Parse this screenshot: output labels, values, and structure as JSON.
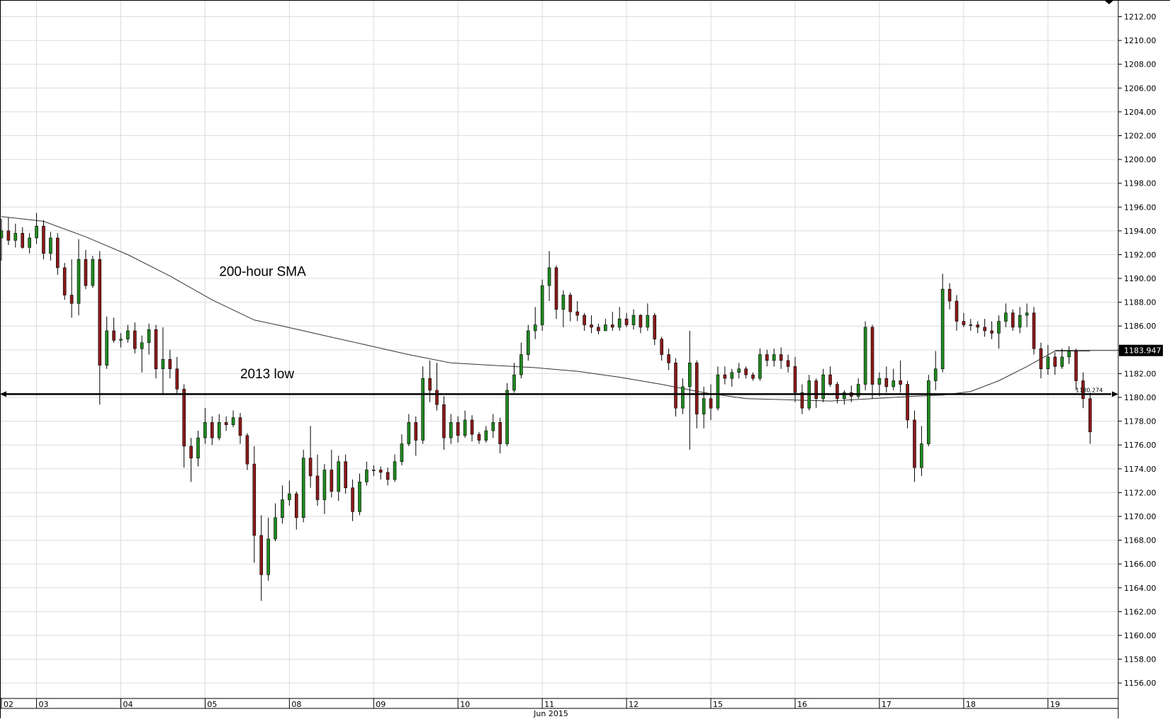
{
  "chart_data": {
    "type": "candlestick",
    "month_label": "Jun 2015",
    "y_axis": {
      "min": 1154.7,
      "max": 1213.4,
      "ticks": [
        1156,
        1158,
        1160,
        1162,
        1164,
        1166,
        1168,
        1170,
        1172,
        1174,
        1176,
        1178,
        1180,
        1182,
        1184,
        1186,
        1188,
        1190,
        1192,
        1194,
        1196,
        1198,
        1200,
        1202,
        1204,
        1206,
        1208,
        1210,
        1212
      ],
      "position": "right"
    },
    "x_axis": {
      "range": [
        0,
        158
      ],
      "days": [
        {
          "label": "02",
          "x": 0
        },
        {
          "label": "03",
          "x": 5
        },
        {
          "label": "04",
          "x": 17
        },
        {
          "label": "05",
          "x": 29
        },
        {
          "label": "08",
          "x": 41
        },
        {
          "label": "09",
          "x": 53
        },
        {
          "label": "10",
          "x": 65
        },
        {
          "label": "11",
          "x": 77
        },
        {
          "label": "12",
          "x": 89
        },
        {
          "label": "15",
          "x": 101
        },
        {
          "label": "16",
          "x": 113
        },
        {
          "label": "17",
          "x": 125
        },
        {
          "label": "18",
          "x": 137
        },
        {
          "label": "19",
          "x": 149
        }
      ]
    },
    "grid": true,
    "colors": {
      "up": "#1f8a1f",
      "down": "#8b1a1a",
      "wick": "#000000",
      "sma": "#333333",
      "level": "#000000"
    },
    "annotations": [
      {
        "text": "200-hour SMA",
        "x": 31,
        "y": 1190.2
      },
      {
        "text": "2013 low",
        "x": 34,
        "y": 1181.6
      }
    ],
    "level_line": {
      "value": 1180.274,
      "label": "1180.274"
    },
    "last_value": {
      "value": 1183.947,
      "label": "1183.947"
    },
    "sma": [
      [
        0,
        1195.2
      ],
      [
        6,
        1194.8
      ],
      [
        12,
        1193.5
      ],
      [
        18,
        1192.0
      ],
      [
        24,
        1190.2
      ],
      [
        30,
        1188.2
      ],
      [
        36,
        1186.5
      ],
      [
        40,
        1186.0
      ],
      [
        46,
        1185.2
      ],
      [
        52,
        1184.4
      ],
      [
        58,
        1183.6
      ],
      [
        64,
        1182.9
      ],
      [
        70,
        1182.7
      ],
      [
        76,
        1182.5
      ],
      [
        82,
        1182.2
      ],
      [
        88,
        1181.7
      ],
      [
        94,
        1181.1
      ],
      [
        100,
        1180.4
      ],
      [
        106,
        1179.9
      ],
      [
        112,
        1179.8
      ],
      [
        118,
        1179.7
      ],
      [
        124,
        1179.9
      ],
      [
        130,
        1180.1
      ],
      [
        134,
        1180.2
      ],
      [
        138,
        1180.5
      ],
      [
        142,
        1181.4
      ],
      [
        146,
        1182.6
      ],
      [
        150,
        1183.9
      ],
      [
        155,
        1183.9
      ]
    ],
    "candles": [
      {
        "o": 1193.4,
        "h": 1195.0,
        "l": 1191.5,
        "c": 1194.0
      },
      {
        "o": 1194.0,
        "h": 1195.1,
        "l": 1192.8,
        "c": 1193.2
      },
      {
        "o": 1193.2,
        "h": 1194.6,
        "l": 1192.6,
        "c": 1193.8
      },
      {
        "o": 1193.8,
        "h": 1194.3,
        "l": 1192.5,
        "c": 1192.6
      },
      {
        "o": 1192.6,
        "h": 1193.8,
        "l": 1192.1,
        "c": 1193.4
      },
      {
        "o": 1193.4,
        "h": 1195.5,
        "l": 1192.9,
        "c": 1194.4
      },
      {
        "o": 1194.4,
        "h": 1194.9,
        "l": 1191.6,
        "c": 1192.1
      },
      {
        "o": 1192.1,
        "h": 1193.9,
        "l": 1191.5,
        "c": 1193.4
      },
      {
        "o": 1193.4,
        "h": 1193.8,
        "l": 1190.3,
        "c": 1190.9
      },
      {
        "o": 1190.9,
        "h": 1191.3,
        "l": 1188.2,
        "c": 1188.6
      },
      {
        "o": 1188.6,
        "h": 1191.6,
        "l": 1186.7,
        "c": 1187.9
      },
      {
        "o": 1187.9,
        "h": 1193.3,
        "l": 1186.9,
        "c": 1191.6
      },
      {
        "o": 1191.6,
        "h": 1192.4,
        "l": 1189.1,
        "c": 1189.4
      },
      {
        "o": 1189.4,
        "h": 1191.9,
        "l": 1189.2,
        "c": 1191.6
      },
      {
        "o": 1191.6,
        "h": 1192.3,
        "l": 1179.4,
        "c": 1182.7
      },
      {
        "o": 1182.7,
        "h": 1186.8,
        "l": 1182.4,
        "c": 1185.6
      },
      {
        "o": 1185.6,
        "h": 1186.7,
        "l": 1184.6,
        "c": 1184.8
      },
      {
        "o": 1184.8,
        "h": 1185.4,
        "l": 1184.2,
        "c": 1184.9
      },
      {
        "o": 1184.9,
        "h": 1186.1,
        "l": 1184.6,
        "c": 1185.6
      },
      {
        "o": 1185.6,
        "h": 1186.3,
        "l": 1183.7,
        "c": 1184.1
      },
      {
        "o": 1184.1,
        "h": 1185.2,
        "l": 1182.1,
        "c": 1184.6
      },
      {
        "o": 1184.6,
        "h": 1186.2,
        "l": 1183.6,
        "c": 1185.7
      },
      {
        "o": 1185.7,
        "h": 1186.1,
        "l": 1181.6,
        "c": 1182.4
      },
      {
        "o": 1182.4,
        "h": 1185.9,
        "l": 1180.2,
        "c": 1183.2
      },
      {
        "o": 1183.2,
        "h": 1184.0,
        "l": 1181.6,
        "c": 1182.4
      },
      {
        "o": 1182.4,
        "h": 1183.4,
        "l": 1180.3,
        "c": 1180.7
      },
      {
        "o": 1180.7,
        "h": 1181.1,
        "l": 1174.1,
        "c": 1175.9
      },
      {
        "o": 1175.9,
        "h": 1176.6,
        "l": 1172.9,
        "c": 1174.9
      },
      {
        "o": 1174.9,
        "h": 1177.2,
        "l": 1174.2,
        "c": 1176.6
      },
      {
        "o": 1176.6,
        "h": 1179.1,
        "l": 1176.1,
        "c": 1177.9
      },
      {
        "o": 1177.9,
        "h": 1178.4,
        "l": 1176.0,
        "c": 1176.6
      },
      {
        "o": 1176.6,
        "h": 1178.6,
        "l": 1176.4,
        "c": 1177.9
      },
      {
        "o": 1177.9,
        "h": 1178.4,
        "l": 1177.2,
        "c": 1177.7
      },
      {
        "o": 1177.7,
        "h": 1178.9,
        "l": 1177.5,
        "c": 1178.3
      },
      {
        "o": 1178.3,
        "h": 1178.7,
        "l": 1176.1,
        "c": 1176.8
      },
      {
        "o": 1176.8,
        "h": 1177.0,
        "l": 1173.9,
        "c": 1174.4
      },
      {
        "o": 1174.4,
        "h": 1175.9,
        "l": 1166.1,
        "c": 1168.4
      },
      {
        "o": 1168.4,
        "h": 1170.1,
        "l": 1162.9,
        "c": 1165.1
      },
      {
        "o": 1165.1,
        "h": 1169.9,
        "l": 1164.6,
        "c": 1168.1
      },
      {
        "o": 1168.1,
        "h": 1171.1,
        "l": 1167.9,
        "c": 1169.9
      },
      {
        "o": 1169.9,
        "h": 1172.6,
        "l": 1169.4,
        "c": 1171.4
      },
      {
        "o": 1171.4,
        "h": 1173.0,
        "l": 1170.9,
        "c": 1171.9
      },
      {
        "o": 1171.9,
        "h": 1172.1,
        "l": 1168.9,
        "c": 1169.9
      },
      {
        "o": 1169.9,
        "h": 1175.6,
        "l": 1169.5,
        "c": 1174.9
      },
      {
        "o": 1174.9,
        "h": 1177.6,
        "l": 1172.4,
        "c": 1173.4
      },
      {
        "o": 1173.4,
        "h": 1175.2,
        "l": 1170.9,
        "c": 1171.4
      },
      {
        "o": 1171.4,
        "h": 1174.4,
        "l": 1170.2,
        "c": 1173.9
      },
      {
        "o": 1173.9,
        "h": 1175.6,
        "l": 1171.6,
        "c": 1172.1
      },
      {
        "o": 1172.1,
        "h": 1175.1,
        "l": 1171.3,
        "c": 1174.6
      },
      {
        "o": 1174.6,
        "h": 1175.2,
        "l": 1171.9,
        "c": 1172.4
      },
      {
        "o": 1172.4,
        "h": 1173.1,
        "l": 1169.6,
        "c": 1170.4
      },
      {
        "o": 1170.4,
        "h": 1173.6,
        "l": 1170.1,
        "c": 1172.9
      },
      {
        "o": 1172.9,
        "h": 1174.6,
        "l": 1172.6,
        "c": 1173.9
      },
      {
        "o": 1173.9,
        "h": 1174.3,
        "l": 1173.4,
        "c": 1173.9
      },
      {
        "o": 1173.9,
        "h": 1174.2,
        "l": 1173.1,
        "c": 1173.7
      },
      {
        "o": 1173.7,
        "h": 1174.1,
        "l": 1172.6,
        "c": 1173.1
      },
      {
        "o": 1173.1,
        "h": 1175.2,
        "l": 1172.9,
        "c": 1174.6
      },
      {
        "o": 1174.6,
        "h": 1176.9,
        "l": 1174.3,
        "c": 1176.1
      },
      {
        "o": 1176.1,
        "h": 1178.6,
        "l": 1175.9,
        "c": 1177.9
      },
      {
        "o": 1177.9,
        "h": 1178.4,
        "l": 1175.1,
        "c": 1176.4
      },
      {
        "o": 1176.4,
        "h": 1182.6,
        "l": 1176.1,
        "c": 1181.6
      },
      {
        "o": 1181.6,
        "h": 1183.1,
        "l": 1179.6,
        "c": 1180.6
      },
      {
        "o": 1180.6,
        "h": 1182.9,
        "l": 1178.9,
        "c": 1179.4
      },
      {
        "o": 1179.4,
        "h": 1180.1,
        "l": 1175.6,
        "c": 1176.6
      },
      {
        "o": 1176.6,
        "h": 1178.6,
        "l": 1176.1,
        "c": 1177.9
      },
      {
        "o": 1177.9,
        "h": 1178.4,
        "l": 1176.2,
        "c": 1176.8
      },
      {
        "o": 1176.8,
        "h": 1178.9,
        "l": 1176.6,
        "c": 1178.1
      },
      {
        "o": 1178.1,
        "h": 1178.5,
        "l": 1176.3,
        "c": 1176.9
      },
      {
        "o": 1176.9,
        "h": 1177.1,
        "l": 1176.1,
        "c": 1176.4
      },
      {
        "o": 1176.4,
        "h": 1177.6,
        "l": 1176.2,
        "c": 1177.2
      },
      {
        "o": 1177.2,
        "h": 1178.6,
        "l": 1176.6,
        "c": 1177.9
      },
      {
        "o": 1177.9,
        "h": 1178.3,
        "l": 1175.3,
        "c": 1176.1
      },
      {
        "o": 1176.1,
        "h": 1181.2,
        "l": 1175.9,
        "c": 1180.6
      },
      {
        "o": 1180.6,
        "h": 1182.9,
        "l": 1180.4,
        "c": 1181.9
      },
      {
        "o": 1181.9,
        "h": 1184.6,
        "l": 1181.6,
        "c": 1183.6
      },
      {
        "o": 1183.6,
        "h": 1186.1,
        "l": 1183.1,
        "c": 1185.6
      },
      {
        "o": 1185.6,
        "h": 1187.6,
        "l": 1184.9,
        "c": 1186.1
      },
      {
        "o": 1186.1,
        "h": 1189.9,
        "l": 1185.6,
        "c": 1189.4
      },
      {
        "o": 1189.4,
        "h": 1192.3,
        "l": 1188.1,
        "c": 1190.9
      },
      {
        "o": 1190.9,
        "h": 1191.1,
        "l": 1186.6,
        "c": 1187.4
      },
      {
        "o": 1187.4,
        "h": 1189.0,
        "l": 1185.9,
        "c": 1188.6
      },
      {
        "o": 1188.6,
        "h": 1188.8,
        "l": 1186.4,
        "c": 1187.2
      },
      {
        "o": 1187.2,
        "h": 1188.1,
        "l": 1186.4,
        "c": 1186.9
      },
      {
        "o": 1186.9,
        "h": 1187.1,
        "l": 1185.6,
        "c": 1186.1
      },
      {
        "o": 1186.1,
        "h": 1186.9,
        "l": 1185.4,
        "c": 1185.9
      },
      {
        "o": 1185.9,
        "h": 1186.2,
        "l": 1185.3,
        "c": 1185.6
      },
      {
        "o": 1185.6,
        "h": 1186.6,
        "l": 1185.6,
        "c": 1186.1
      },
      {
        "o": 1186.1,
        "h": 1187.2,
        "l": 1185.6,
        "c": 1185.9
      },
      {
        "o": 1185.9,
        "h": 1187.6,
        "l": 1185.6,
        "c": 1186.6
      },
      {
        "o": 1186.6,
        "h": 1187.1,
        "l": 1185.9,
        "c": 1186.1
      },
      {
        "o": 1186.1,
        "h": 1187.4,
        "l": 1185.7,
        "c": 1186.9
      },
      {
        "o": 1186.9,
        "h": 1187.0,
        "l": 1185.4,
        "c": 1185.9
      },
      {
        "o": 1185.9,
        "h": 1187.9,
        "l": 1185.6,
        "c": 1186.9
      },
      {
        "o": 1186.9,
        "h": 1187.1,
        "l": 1184.4,
        "c": 1184.9
      },
      {
        "o": 1184.9,
        "h": 1185.1,
        "l": 1183.1,
        "c": 1183.6
      },
      {
        "o": 1183.6,
        "h": 1184.1,
        "l": 1182.3,
        "c": 1182.9
      },
      {
        "o": 1182.9,
        "h": 1183.3,
        "l": 1178.4,
        "c": 1179.1
      },
      {
        "o": 1179.1,
        "h": 1181.6,
        "l": 1178.6,
        "c": 1180.9
      },
      {
        "o": 1180.9,
        "h": 1185.6,
        "l": 1175.6,
        "c": 1182.9
      },
      {
        "o": 1182.9,
        "h": 1183.1,
        "l": 1177.4,
        "c": 1178.6
      },
      {
        "o": 1178.6,
        "h": 1180.9,
        "l": 1177.4,
        "c": 1179.9
      },
      {
        "o": 1179.9,
        "h": 1181.1,
        "l": 1178.1,
        "c": 1179.1
      },
      {
        "o": 1179.1,
        "h": 1182.6,
        "l": 1178.9,
        "c": 1181.9
      },
      {
        "o": 1181.9,
        "h": 1182.6,
        "l": 1181.1,
        "c": 1181.6
      },
      {
        "o": 1181.6,
        "h": 1182.4,
        "l": 1180.9,
        "c": 1182.1
      },
      {
        "o": 1182.1,
        "h": 1182.9,
        "l": 1181.6,
        "c": 1182.4
      },
      {
        "o": 1182.4,
        "h": 1182.6,
        "l": 1181.6,
        "c": 1181.9
      },
      {
        "o": 1181.9,
        "h": 1182.1,
        "l": 1181.4,
        "c": 1181.6
      },
      {
        "o": 1181.6,
        "h": 1184.1,
        "l": 1181.4,
        "c": 1183.6
      },
      {
        "o": 1183.6,
        "h": 1184.0,
        "l": 1182.6,
        "c": 1183.1
      },
      {
        "o": 1183.1,
        "h": 1184.1,
        "l": 1182.6,
        "c": 1183.6
      },
      {
        "o": 1183.6,
        "h": 1184.2,
        "l": 1182.4,
        "c": 1183.1
      },
      {
        "o": 1183.1,
        "h": 1183.6,
        "l": 1182.1,
        "c": 1182.6
      },
      {
        "o": 1182.6,
        "h": 1183.4,
        "l": 1179.6,
        "c": 1180.4
      },
      {
        "o": 1180.4,
        "h": 1181.1,
        "l": 1178.6,
        "c": 1179.1
      },
      {
        "o": 1179.1,
        "h": 1181.9,
        "l": 1178.9,
        "c": 1181.4
      },
      {
        "o": 1181.4,
        "h": 1181.6,
        "l": 1179.1,
        "c": 1179.9
      },
      {
        "o": 1179.9,
        "h": 1182.4,
        "l": 1179.6,
        "c": 1181.9
      },
      {
        "o": 1181.9,
        "h": 1182.6,
        "l": 1180.9,
        "c": 1181.1
      },
      {
        "o": 1181.1,
        "h": 1181.3,
        "l": 1179.5,
        "c": 1179.9
      },
      {
        "o": 1179.9,
        "h": 1180.6,
        "l": 1179.4,
        "c": 1180.4
      },
      {
        "o": 1180.4,
        "h": 1181.0,
        "l": 1179.6,
        "c": 1180.1
      },
      {
        "o": 1180.1,
        "h": 1181.6,
        "l": 1179.9,
        "c": 1181.1
      },
      {
        "o": 1181.1,
        "h": 1186.4,
        "l": 1180.6,
        "c": 1185.9
      },
      {
        "o": 1185.9,
        "h": 1186.1,
        "l": 1179.9,
        "c": 1181.1
      },
      {
        "o": 1181.1,
        "h": 1182.1,
        "l": 1180.1,
        "c": 1181.6
      },
      {
        "o": 1181.6,
        "h": 1182.6,
        "l": 1180.4,
        "c": 1180.9
      },
      {
        "o": 1180.9,
        "h": 1182.4,
        "l": 1180.6,
        "c": 1181.4
      },
      {
        "o": 1181.4,
        "h": 1183.1,
        "l": 1180.4,
        "c": 1181.1
      },
      {
        "o": 1181.1,
        "h": 1181.4,
        "l": 1177.4,
        "c": 1178.1
      },
      {
        "o": 1178.1,
        "h": 1178.9,
        "l": 1172.9,
        "c": 1174.1
      },
      {
        "o": 1174.1,
        "h": 1177.6,
        "l": 1173.4,
        "c": 1176.1
      },
      {
        "o": 1176.1,
        "h": 1181.9,
        "l": 1175.9,
        "c": 1181.4
      },
      {
        "o": 1181.4,
        "h": 1183.9,
        "l": 1180.6,
        "c": 1182.4
      },
      {
        "o": 1182.4,
        "h": 1190.4,
        "l": 1182.1,
        "c": 1189.1
      },
      {
        "o": 1189.1,
        "h": 1189.6,
        "l": 1187.4,
        "c": 1188.1
      },
      {
        "o": 1188.1,
        "h": 1188.6,
        "l": 1185.6,
        "c": 1186.4
      },
      {
        "o": 1186.4,
        "h": 1187.1,
        "l": 1185.9,
        "c": 1186.1
      },
      {
        "o": 1186.1,
        "h": 1186.6,
        "l": 1185.6,
        "c": 1186.1
      },
      {
        "o": 1186.1,
        "h": 1186.4,
        "l": 1185.4,
        "c": 1185.9
      },
      {
        "o": 1185.9,
        "h": 1186.6,
        "l": 1185.1,
        "c": 1185.6
      },
      {
        "o": 1185.6,
        "h": 1186.4,
        "l": 1184.9,
        "c": 1185.4
      },
      {
        "o": 1185.4,
        "h": 1186.9,
        "l": 1184.1,
        "c": 1186.4
      },
      {
        "o": 1186.4,
        "h": 1187.9,
        "l": 1185.9,
        "c": 1187.1
      },
      {
        "o": 1187.1,
        "h": 1187.4,
        "l": 1185.6,
        "c": 1185.9
      },
      {
        "o": 1185.9,
        "h": 1187.6,
        "l": 1185.4,
        "c": 1186.9
      },
      {
        "o": 1186.9,
        "h": 1187.9,
        "l": 1185.9,
        "c": 1187.1
      },
      {
        "o": 1187.1,
        "h": 1187.6,
        "l": 1183.6,
        "c": 1184.1
      },
      {
        "o": 1184.1,
        "h": 1184.6,
        "l": 1181.6,
        "c": 1182.4
      },
      {
        "o": 1182.4,
        "h": 1184.4,
        "l": 1181.9,
        "c": 1183.4
      },
      {
        "o": 1183.4,
        "h": 1183.8,
        "l": 1181.9,
        "c": 1182.6
      },
      {
        "o": 1182.6,
        "h": 1184.1,
        "l": 1182.4,
        "c": 1183.4
      },
      {
        "o": 1183.4,
        "h": 1184.3,
        "l": 1182.8,
        "c": 1183.9
      },
      {
        "o": 1183.9,
        "h": 1184.1,
        "l": 1180.6,
        "c": 1181.4
      },
      {
        "o": 1181.4,
        "h": 1182.1,
        "l": 1179.1,
        "c": 1179.9
      },
      {
        "o": 1179.9,
        "h": 1180.4,
        "l": 1176.1,
        "c": 1177.1
      }
    ]
  }
}
